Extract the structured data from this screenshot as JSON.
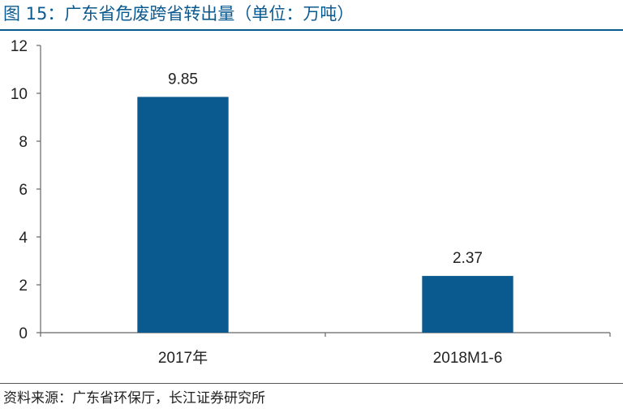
{
  "figure": {
    "title": "图 15：广东省危废跨省转出量（单位：万吨）",
    "source": "资料来源：广东省环保厅，长江证券研究所"
  },
  "colors": {
    "title": "#0b5a8f",
    "bar": "#0b5a8f"
  },
  "chart_data": {
    "type": "bar",
    "title": "图 15：广东省危废跨省转出量（单位：万吨）",
    "categories": [
      "2017年",
      "2018M1-6"
    ],
    "values": [
      9.85,
      2.37
    ],
    "data_labels": [
      "9.85",
      "2.37"
    ],
    "xlabel": "",
    "ylabel": "",
    "ylim": [
      0,
      12
    ],
    "yticks": [
      0,
      2,
      4,
      6,
      8,
      10,
      12
    ],
    "grid": false,
    "legend": "none"
  }
}
